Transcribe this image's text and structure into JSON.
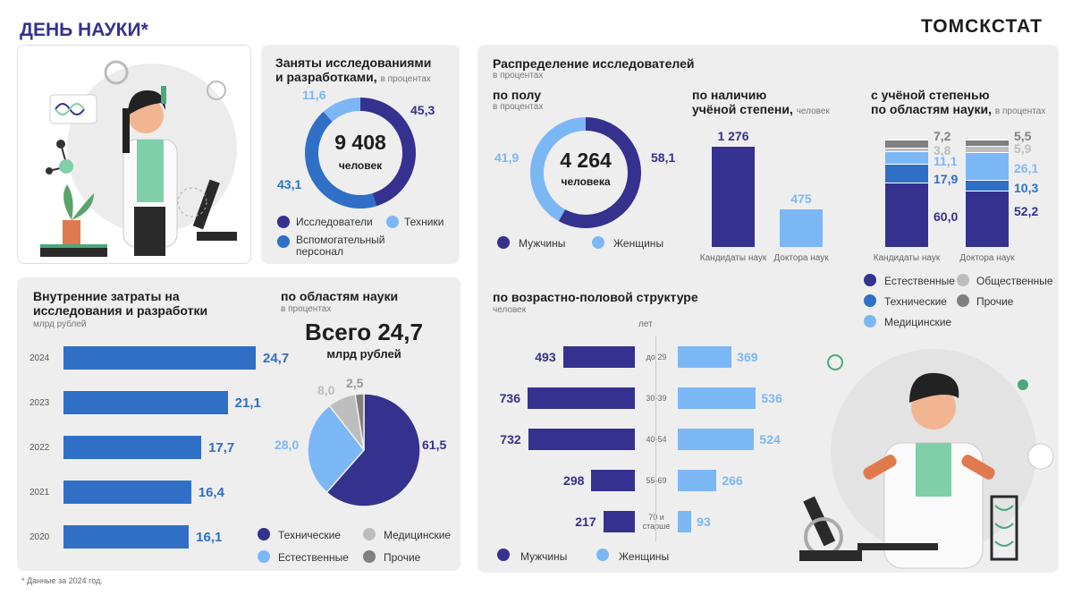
{
  "header": {
    "title": "ДЕНЬ НАУКИ*",
    "brand": "ТОМСКСТАТ"
  },
  "footnote": "* Данные за 2024 год.",
  "colors": {
    "navy": "#35318e",
    "blue": "#2f6fc6",
    "light_blue": "#7cb7f5",
    "light_gray": "#bdbdbd",
    "gray": "#808080"
  },
  "employed": {
    "title_line1": "Заняты исследованиями",
    "title_line2": "и разработками,",
    "unit": "в процентах",
    "center_value": "9 408",
    "center_unit": "человек",
    "legend": {
      "researchers": "Исследователи",
      "technicians": "Техники",
      "support_line1": "Вспомогательный",
      "support_line2": "персонал"
    }
  },
  "distribution": {
    "title": "Распределение исследователей",
    "unit": "в процентах",
    "by_sex": {
      "title": "по полу",
      "unit": "в процентах",
      "center_value": "4 264",
      "center_unit": "человека",
      "legend_men": "Мужчины",
      "legend_women": "Женщины"
    },
    "by_degree": {
      "title_line1": "по наличию",
      "title_line2": "учёной степени,",
      "unit": "человек"
    },
    "by_field": {
      "title_line1": "с учёной степенью",
      "title_line2": "по областям науки,",
      "unit": "в процентах",
      "legend": {
        "natural": "Естественные",
        "social": "Общественные",
        "technical": "Технические",
        "other": "Прочие",
        "medical": "Медицинские"
      }
    }
  },
  "costs": {
    "title_line1": "Внутренние затраты  на",
    "title_line2": "исследования и разработки",
    "unit": "млрд рублей"
  },
  "fields": {
    "title": "по областям науки",
    "unit": "в процентах",
    "total": "Всего 24,7",
    "total_unit": "млрд рублей",
    "legend": {
      "technical": "Технические",
      "medical": "Медицинские",
      "natural": "Естественные",
      "other": "Прочие"
    }
  },
  "age": {
    "title": "по возрастно-половой структуре",
    "unit": "человек",
    "axis_label": "лет",
    "legend_men": "Мужчины",
    "legend_women": "Женщины"
  },
  "chart_data": [
    {
      "type": "pie",
      "categories": [
        "Исследователи",
        "Вспомогательный персонал",
        "Техники"
      ],
      "values": [
        45.3,
        43.1,
        11.6
      ],
      "value_labels": [
        "45,3",
        "43,1",
        "11,6"
      ]
    },
    {
      "type": "pie",
      "categories": [
        "Мужчины",
        "Женщины"
      ],
      "values": [
        58.1,
        41.9
      ],
      "value_labels": [
        "58,1",
        "41,9"
      ]
    },
    {
      "type": "bar",
      "categories": [
        "Кандидаты наук",
        "Доктора наук"
      ],
      "values": [
        1276,
        475
      ],
      "value_labels": [
        "1 276",
        "475"
      ]
    },
    {
      "type": "bar",
      "stacked": true,
      "categories": [
        "Кандидаты наук",
        "Доктора наук"
      ],
      "series": [
        {
          "name": "Естественные",
          "values": [
            60.0,
            52.2
          ],
          "labels": [
            "60,0",
            "52,2"
          ]
        },
        {
          "name": "Технические",
          "values": [
            17.9,
            10.3
          ],
          "labels": [
            "17,9",
            "10,3"
          ]
        },
        {
          "name": "Медицинские",
          "values": [
            11.1,
            26.1
          ],
          "labels": [
            "11,1",
            "26,1"
          ]
        },
        {
          "name": "Общественные",
          "values": [
            3.8,
            5.9
          ],
          "labels": [
            "3,8",
            "5,9"
          ]
        },
        {
          "name": "Прочие",
          "values": [
            7.2,
            5.5
          ],
          "labels": [
            "7,2",
            "5,5"
          ]
        }
      ]
    },
    {
      "type": "bar",
      "orientation": "horizontal",
      "categories": [
        "2024",
        "2023",
        "2022",
        "2021",
        "2020"
      ],
      "values": [
        24.7,
        21.1,
        17.7,
        16.4,
        16.1
      ],
      "value_labels": [
        "24,7",
        "21,1",
        "17,7",
        "16,4",
        "16,1"
      ]
    },
    {
      "type": "pie",
      "categories": [
        "Технические",
        "Естественные",
        "Медицинские",
        "Прочие"
      ],
      "values": [
        61.5,
        28.0,
        8.0,
        2.5
      ],
      "value_labels": [
        "61,5",
        "28,0",
        "8,0",
        "2,5"
      ]
    },
    {
      "type": "bar",
      "orientation": "horizontal",
      "categories": [
        "до 29",
        "30-39",
        "40-54",
        "55-69",
        "70 и старше"
      ],
      "category_lines": [
        [
          "до 29"
        ],
        [
          "30-39"
        ],
        [
          "40-54"
        ],
        [
          "55-69"
        ],
        [
          "70 и",
          "старше"
        ]
      ],
      "series": [
        {
          "name": "Мужчины",
          "values": [
            493,
            736,
            732,
            298,
            217
          ]
        },
        {
          "name": "Женщины",
          "values": [
            369,
            536,
            524,
            266,
            93
          ]
        }
      ]
    }
  ]
}
